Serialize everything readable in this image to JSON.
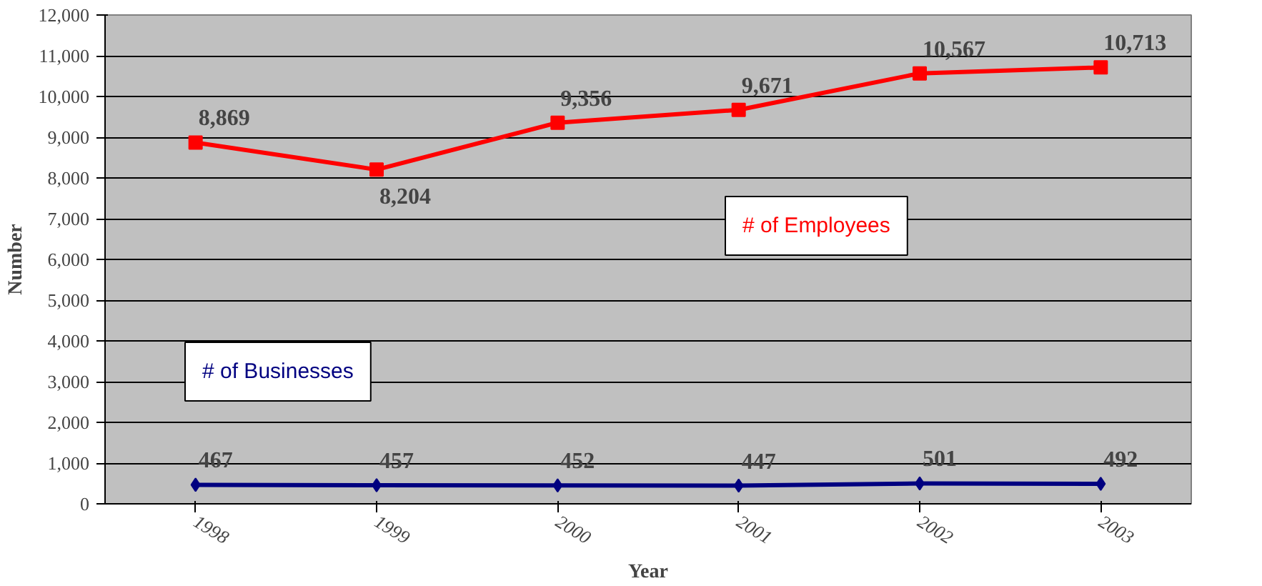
{
  "chart_data": {
    "type": "line",
    "xlabel": "Year",
    "ylabel": "Number",
    "categories": [
      "1998",
      "1999",
      "2000",
      "2001",
      "2002",
      "2003"
    ],
    "series": [
      {
        "name": "# of Employees",
        "color": "#ff0000",
        "marker": "square",
        "values": [
          8869,
          8204,
          9356,
          9671,
          10567,
          10713
        ],
        "value_labels": [
          "8,869",
          "8,204",
          "9,356",
          "9,671",
          "10,567",
          "10,713"
        ]
      },
      {
        "name": "# of Businesses",
        "color": "#000080",
        "marker": "diamond",
        "values": [
          467,
          457,
          452,
          447,
          501,
          492
        ],
        "value_labels": [
          "467",
          "457",
          "452",
          "447",
          "501",
          "492"
        ]
      }
    ],
    "ylim": [
      0,
      12000
    ],
    "yticks": [
      0,
      {
        "value": 1000,
        "label": "1,000"
      },
      {
        "value": 2000,
        "label": "2,000"
      },
      {
        "value": 3000,
        "label": "3,000"
      },
      {
        "value": 4000,
        "label": "4,000"
      },
      {
        "value": 5000,
        "label": "5,000"
      },
      {
        "value": 6000,
        "label": "6,000"
      },
      {
        "value": 7000,
        "label": "7,000"
      },
      {
        "value": 8000,
        "label": "8,000"
      },
      {
        "value": 9000,
        "label": "9,000"
      },
      {
        "value": 10000,
        "label": "10,000"
      },
      {
        "value": 11000,
        "label": "11,000"
      },
      {
        "value": 12000,
        "label": "12,000"
      }
    ],
    "grid": "y",
    "line_style": "solid"
  }
}
